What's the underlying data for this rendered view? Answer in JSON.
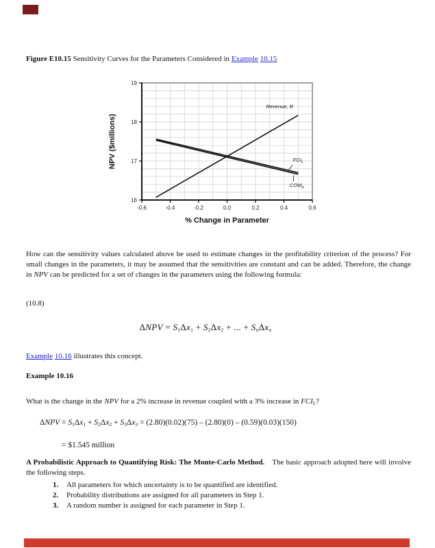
{
  "marks": {
    "top_redaction_color": "#7b1b1b",
    "bottom_redaction_color": "#d03b2d"
  },
  "caption": {
    "segments": [
      {
        "t": "Figure E10.15 ",
        "b": 1
      },
      {
        "t": "Sensitivity Curves for the Parameters Considered in "
      },
      {
        "t": "Example",
        "link": 1
      },
      {
        "t": " "
      },
      {
        "t": "10.15",
        "link": 1
      }
    ]
  },
  "chart_data": {
    "type": "line",
    "title": "",
    "xlabel": "% Change in Parameter",
    "ylabel": "NPV ($millions)",
    "xlim": [
      -0.6,
      0.6
    ],
    "ylim": [
      16,
      19
    ],
    "xticks": [
      "-0.6",
      "-0.4",
      "-0.2",
      "0.0",
      "0.2",
      "0.4",
      "0.6"
    ],
    "yticks": [
      "16",
      "17",
      "18",
      "19"
    ],
    "x_minor_grid": 0.1,
    "y_minor_grid": 0.2,
    "grid": true,
    "legend_position": "inline-annotations",
    "line_color": "#111111",
    "grid_color": "#cccccc",
    "series": [
      {
        "name": "Revenue, R",
        "x": [
          -0.5,
          0.5
        ],
        "y": [
          16.07,
          18.17
        ],
        "width": 1.6
      },
      {
        "name": "FCI_L",
        "x": [
          -0.5,
          0.5
        ],
        "y": [
          17.56,
          16.7
        ],
        "width": 1.7
      },
      {
        "name": "COM_d",
        "x": [
          -0.5,
          0.5
        ],
        "y": [
          17.53,
          16.66
        ],
        "width": 1.7
      }
    ],
    "annotations": [
      {
        "text": "Revenue, R",
        "x": 0.37,
        "y": 18.35
      },
      {
        "text": "FCI",
        "sub": "L",
        "x": 0.5,
        "y": 16.98
      },
      {
        "text": "COM",
        "sub": "d",
        "x": 0.49,
        "y": 16.33
      }
    ],
    "leaders": [
      {
        "x1": 0.462,
        "y1": 16.9,
        "x2": 0.428,
        "y2": 16.75
      },
      {
        "x1": 0.468,
        "y1": 16.47,
        "x2": 0.468,
        "y2": 16.63
      }
    ]
  },
  "paragraphs": {
    "intro_segments": [
      {
        "t": "How can the sensitivity values calculated above be used to estimate changes in the profitability criterion of the process? For small changes in the parameters, it may be assumed that the sensitivities are constant and can be added. Therefore, the change in "
      },
      {
        "t": "NPV",
        "i": 1
      },
      {
        "t": " can be predicted for a set of changes in the parameters using the following formula:"
      }
    ],
    "eq_number": "(10.8)",
    "formula_segments": [
      {
        "t": "Δ"
      },
      {
        "t": "NPV",
        "i": 1
      },
      {
        "t": " = "
      },
      {
        "t": "S",
        "i": 1
      },
      {
        "t": "1",
        "sub": 1
      },
      {
        "t": "Δ"
      },
      {
        "t": "x",
        "i": 1
      },
      {
        "t": "1",
        "sub": 1
      },
      {
        "t": " + "
      },
      {
        "t": "S",
        "i": 1
      },
      {
        "t": "2",
        "sub": 1
      },
      {
        "t": "Δ"
      },
      {
        "t": "x",
        "i": 1
      },
      {
        "t": "2",
        "sub": 1
      },
      {
        "t": " + ... + "
      },
      {
        "t": "S",
        "i": 1
      },
      {
        "t": "n",
        "sub": 1,
        "i": 1
      },
      {
        "t": "Δ"
      },
      {
        "t": "x",
        "i": 1
      },
      {
        "t": "n",
        "sub": 1,
        "i": 1
      }
    ],
    "example_ref_segments": [
      {
        "t": "Example",
        "link": 1
      },
      {
        "t": " "
      },
      {
        "t": "10.16",
        "link": 1
      },
      {
        "t": " illustrates this concept."
      }
    ],
    "example_heading": "Example 10.16",
    "question_segments": [
      {
        "t": "What is the change in the "
      },
      {
        "t": "NPV",
        "i": 1
      },
      {
        "t": " for a 2% increase in revenue coupled with a 3% increase in "
      },
      {
        "t": "FCI",
        "i": 1
      },
      {
        "t": "L",
        "i": 1,
        "sub": 1
      },
      {
        "t": "?"
      }
    ],
    "calc_segments": [
      {
        "t": "Δ"
      },
      {
        "t": "NPV",
        "i": 1
      },
      {
        "t": " = "
      },
      {
        "t": "S",
        "i": 1
      },
      {
        "t": "1",
        "sub": 1
      },
      {
        "t": "Δ"
      },
      {
        "t": "x",
        "i": 1
      },
      {
        "t": "1",
        "sub": 1
      },
      {
        "t": " + "
      },
      {
        "t": "S",
        "i": 1
      },
      {
        "t": "2",
        "sub": 1
      },
      {
        "t": "Δ"
      },
      {
        "t": "x",
        "i": 1
      },
      {
        "t": "2",
        "sub": 1
      },
      {
        "t": " + "
      },
      {
        "t": "S",
        "i": 1
      },
      {
        "t": "3",
        "sub": 1
      },
      {
        "t": "Δ"
      },
      {
        "t": "x",
        "i": 1
      },
      {
        "t": "3",
        "sub": 1
      },
      {
        "t": " = (2.80)(0.02)(75) – (2.80)(0) – (0.59)(0.03)(150)"
      }
    ],
    "result": "= $1.545 million",
    "mc_segments": [
      {
        "t": "A Probabilistic Approach to Quantifying Risk: The Monte-Carlo Method.",
        "b": 1
      },
      {
        "t": " The basic approach adopted here will involve the following steps."
      }
    ],
    "steps": [
      {
        "num": "1.",
        "text": "All parameters for which uncertainty is to be quantified are identified."
      },
      {
        "num": "2.",
        "text": "Probability distributions are assigned for all parameters in Step 1."
      },
      {
        "num": "3.",
        "text": "A random number is assigned for each parameter in Step 1."
      }
    ]
  }
}
